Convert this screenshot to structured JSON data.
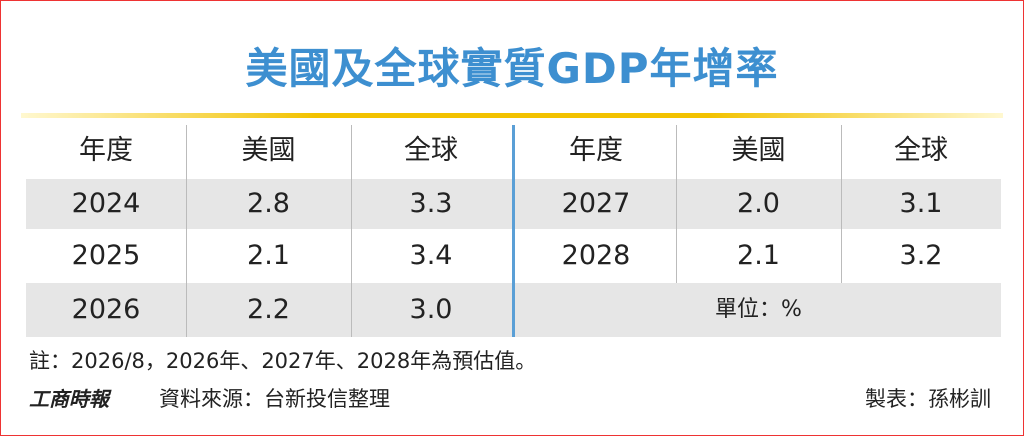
{
  "header": {
    "title": "美國及全球實質GDP年增率"
  },
  "table": {
    "columns": [
      "年度",
      "美國",
      "全球"
    ],
    "left_rows": [
      [
        "2024",
        "2.8",
        "3.3"
      ],
      [
        "2025",
        "2.1",
        "3.4"
      ],
      [
        "2026",
        "2.2",
        "3.0"
      ]
    ],
    "right_rows": [
      [
        "2027",
        "2.0",
        "3.1"
      ],
      [
        "2028",
        "2.1",
        "3.2"
      ]
    ],
    "unit": "單位：%"
  },
  "footer": {
    "note": "註：2026/8，2026年、2027年、2028年為預估值。",
    "logo": "工商時報",
    "source": "資料來源：台新投信整理",
    "credit": "製表：孫彬訓"
  }
}
